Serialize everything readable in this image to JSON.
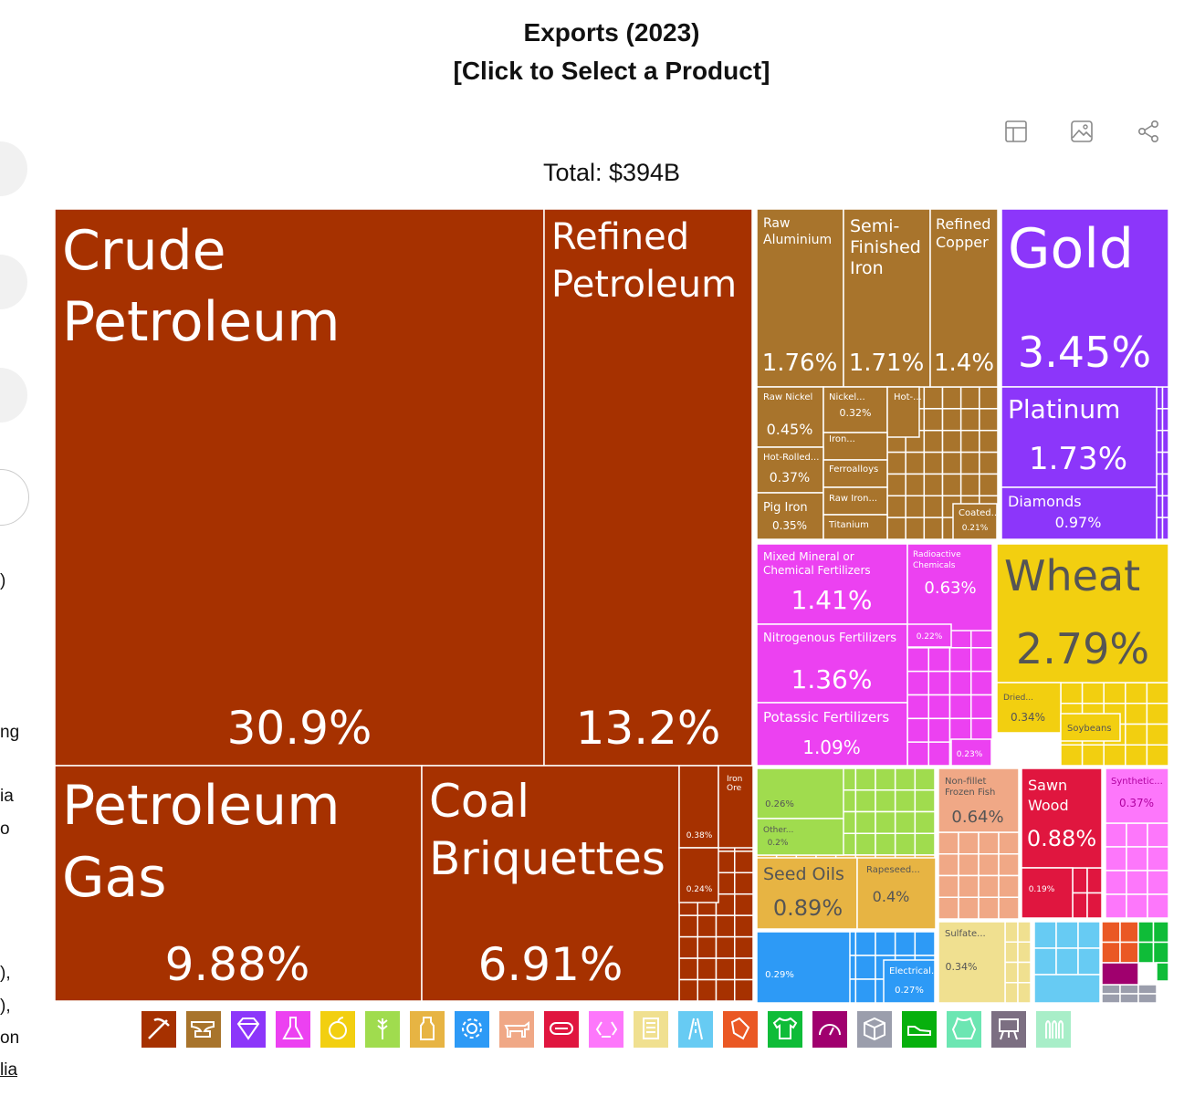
{
  "header": {
    "title_line1": "Exports (2023)",
    "title_line2": "[Click to Select a Product]",
    "total": "Total: $394B"
  },
  "toolbar": {
    "icons": [
      "table-icon",
      "image-icon",
      "share-icon"
    ]
  },
  "sidebar_fragments": [
    ")",
    "ng",
    "ia",
    "o",
    "),",
    "),",
    "on",
    "lia"
  ],
  "colors": {
    "Mineral Products": "#a63100",
    "Metals": "#a8742c",
    "Precious Metals": "#8c36fa",
    "Chemical Products": "#ec41f1",
    "Vegetable Products": "#f2cf10",
    "Foodstuffs": "#a0dc4e",
    "Animal and Vegetable Bi-Products": "#e7b443",
    "Machines": "#2d9af6",
    "Animal Products": "#f0a886",
    "Wood Products": "#e0163f",
    "Plastics and Rubbers": "#fd77fb",
    "Paper Goods": "#f0e090",
    "Transportation": "#67cbf3",
    "Instruments": "#ea5824",
    "Textiles": "#0fbc38",
    "Stone And Glass": "#9b9eac"
  },
  "legend": [
    {
      "name": "mineral-products",
      "icon": "pickaxe-icon",
      "color": "#a63100"
    },
    {
      "name": "metals",
      "icon": "anvil-icon",
      "color": "#a8742c"
    },
    {
      "name": "precious-metals",
      "icon": "diamond-icon",
      "color": "#8c36fa"
    },
    {
      "name": "chemical-products",
      "icon": "flask-icon",
      "color": "#ec41f1"
    },
    {
      "name": "vegetable-products",
      "icon": "fruit-icon",
      "color": "#f2cf10"
    },
    {
      "name": "foodstuffs",
      "icon": "wheat-icon",
      "color": "#a0dc4e"
    },
    {
      "name": "animal-vegetable-bi-products",
      "icon": "bottle-icon",
      "color": "#e7b443"
    },
    {
      "name": "machines",
      "icon": "gear-icon",
      "color": "#2d9af6"
    },
    {
      "name": "animal-products",
      "icon": "cow-icon",
      "color": "#f0a886"
    },
    {
      "name": "wood-products",
      "icon": "log-icon",
      "color": "#e0163f"
    },
    {
      "name": "plastics-and-rubbers",
      "icon": "recycle-icon",
      "color": "#fd77fb"
    },
    {
      "name": "paper-goods",
      "icon": "scroll-icon",
      "color": "#f0e090"
    },
    {
      "name": "transportation",
      "icon": "road-icon",
      "color": "#67cbf3"
    },
    {
      "name": "instruments",
      "icon": "stethoscope-icon",
      "color": "#ea5824"
    },
    {
      "name": "textiles",
      "icon": "shirt-icon",
      "color": "#0fbc38"
    },
    {
      "name": "miscellaneous",
      "icon": "gauge-icon",
      "color": "#a0006e"
    },
    {
      "name": "stone-and-glass",
      "icon": "box-icon",
      "color": "#9b9eac"
    },
    {
      "name": "footwear-and-headwear",
      "icon": "shoe-icon",
      "color": "#07b00d"
    },
    {
      "name": "animal-hides",
      "icon": "hide-icon",
      "color": "#6ce6b2"
    },
    {
      "name": "arms-and-ammunition",
      "icon": "easel-icon",
      "color": "#7c6f82"
    },
    {
      "name": "weapons",
      "icon": "bullets-icon",
      "color": "#a8eec8"
    }
  ],
  "chart_data": {
    "type": "treemap",
    "title": "Exports (2023)",
    "subtitle": "[Click to Select a Product]",
    "total": "Total: $394B",
    "unit": "% share of total exports",
    "items": [
      {
        "name": "Crude Petroleum",
        "value": 30.9,
        "label": "30.9%",
        "category": "Mineral Products"
      },
      {
        "name": "Refined Petroleum",
        "value": 13.2,
        "label": "13.2%",
        "category": "Mineral Products"
      },
      {
        "name": "Petroleum Gas",
        "value": 9.88,
        "label": "9.88%",
        "category": "Mineral Products"
      },
      {
        "name": "Coal Briquettes",
        "value": 6.91,
        "label": "6.91%",
        "category": "Mineral Products"
      },
      {
        "name": "",
        "value": 0.38,
        "label": "0.38%",
        "category": "Mineral Products"
      },
      {
        "name": "Iron Ore",
        "value": 0.3,
        "label": "",
        "category": "Mineral Products"
      },
      {
        "name": "",
        "value": 0.24,
        "label": "0.24%",
        "category": "Mineral Products"
      },
      {
        "name": "Raw Aluminium",
        "value": 1.76,
        "label": "1.76%",
        "category": "Metals"
      },
      {
        "name": "Semi-Finished Iron",
        "value": 1.71,
        "label": "1.71%",
        "category": "Metals"
      },
      {
        "name": "Refined Copper",
        "value": 1.4,
        "label": "1.4%",
        "category": "Metals"
      },
      {
        "name": "Raw Nickel",
        "value": 0.45,
        "label": "0.45%",
        "category": "Metals"
      },
      {
        "name": "Nickel...",
        "value": 0.32,
        "label": "0.32%",
        "category": "Metals"
      },
      {
        "name": "Hot-...",
        "value": 0.3,
        "label": "",
        "category": "Metals"
      },
      {
        "name": "Iron...",
        "value": 0.25,
        "label": "",
        "category": "Metals"
      },
      {
        "name": "Hot-Rolled...",
        "value": 0.37,
        "label": "0.37%",
        "category": "Metals"
      },
      {
        "name": "Ferroalloys",
        "value": 0.25,
        "label": "",
        "category": "Metals"
      },
      {
        "name": "Pig Iron",
        "value": 0.35,
        "label": "0.35%",
        "category": "Metals"
      },
      {
        "name": "Raw Iron...",
        "value": 0.22,
        "label": "",
        "category": "Metals"
      },
      {
        "name": "Titanium",
        "value": 0.2,
        "label": "",
        "category": "Metals"
      },
      {
        "name": "Coated...",
        "value": 0.21,
        "label": "0.21%",
        "category": "Metals"
      },
      {
        "name": "Gold",
        "value": 3.45,
        "label": "3.45%",
        "category": "Precious Metals"
      },
      {
        "name": "Platinum",
        "value": 1.73,
        "label": "1.73%",
        "category": "Precious Metals"
      },
      {
        "name": "Diamonds",
        "value": 0.97,
        "label": "0.97%",
        "category": "Precious Metals"
      },
      {
        "name": "Mixed Mineral or Chemical Fertilizers",
        "value": 1.41,
        "label": "1.41%",
        "category": "Chemical Products"
      },
      {
        "name": "Radioactive Chemicals",
        "value": 0.63,
        "label": "0.63%",
        "category": "Chemical Products"
      },
      {
        "name": "Nitrogenous Fertilizers",
        "value": 1.36,
        "label": "1.36%",
        "category": "Chemical Products"
      },
      {
        "name": "",
        "value": 0.22,
        "label": "0.22%",
        "category": "Chemical Products"
      },
      {
        "name": "Potassic Fertilizers",
        "value": 1.09,
        "label": "1.09%",
        "category": "Chemical Products"
      },
      {
        "name": "",
        "value": 0.23,
        "label": "0.23%",
        "category": "Chemical Products"
      },
      {
        "name": "Wheat",
        "value": 2.79,
        "label": "2.79%",
        "category": "Vegetable Products"
      },
      {
        "name": "Dried...",
        "value": 0.34,
        "label": "0.34%",
        "category": "Vegetable Products"
      },
      {
        "name": "Soybeans",
        "value": 0.3,
        "label": "",
        "category": "Vegetable Products"
      },
      {
        "name": "",
        "value": 0.26,
        "label": "0.26%",
        "category": "Foodstuffs"
      },
      {
        "name": "Other...",
        "value": 0.2,
        "label": "0.2%",
        "category": "Foodstuffs"
      },
      {
        "name": "Seed Oils",
        "value": 0.89,
        "label": "0.89%",
        "category": "Animal and Vegetable Bi-Products"
      },
      {
        "name": "Rapeseed...",
        "value": 0.4,
        "label": "0.4%",
        "category": "Animal and Vegetable Bi-Products"
      },
      {
        "name": "",
        "value": 0.29,
        "label": "0.29%",
        "category": "Machines"
      },
      {
        "name": "Electrical...",
        "value": 0.27,
        "label": "0.27%",
        "category": "Machines"
      },
      {
        "name": "Non-fillet Frozen Fish",
        "value": 0.64,
        "label": "0.64%",
        "category": "Animal Products"
      },
      {
        "name": "Sawn Wood",
        "value": 0.88,
        "label": "0.88%",
        "category": "Wood Products"
      },
      {
        "name": "",
        "value": 0.19,
        "label": "0.19%",
        "category": "Wood Products"
      },
      {
        "name": "Synthetic...",
        "value": 0.37,
        "label": "0.37%",
        "category": "Plastics and Rubbers"
      },
      {
        "name": "Sulfate...",
        "value": 0.34,
        "label": "0.34%",
        "category": "Paper Goods"
      }
    ]
  }
}
